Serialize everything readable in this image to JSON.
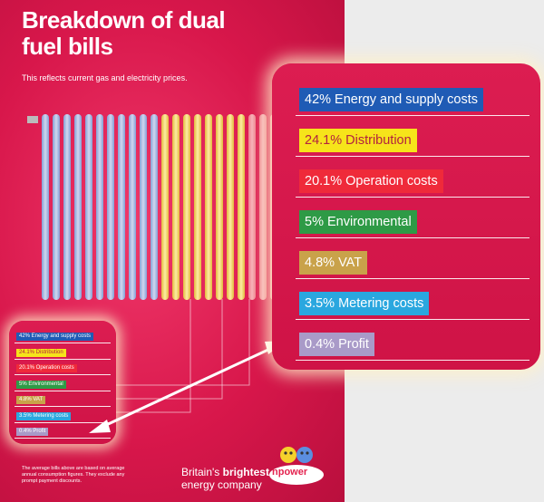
{
  "poster": {
    "title": "Breakdown of dual fuel bills",
    "subtitle": "This reflects current gas and electricity prices.",
    "footnote": "The average bills above are based on average annual consumption figures. They exclude any prompt payment discounts.",
    "brand_line1_pre": "Britain's ",
    "brand_line1_bold": "brightest",
    "brand_line2": "energy company",
    "logo_text": "npower"
  },
  "chart_data": {
    "type": "bar",
    "categories": [
      "Energy and supply costs",
      "Distribution",
      "Operation costs",
      "Environmental",
      "VAT",
      "Metering costs",
      "Profit"
    ],
    "values": [
      42,
      24.1,
      20.1,
      5,
      4.8,
      3.5,
      0.4
    ],
    "labels": [
      "42% Energy and supply costs",
      "24.1% Distribution",
      "20.1% Operation costs",
      "5% Environmental",
      "4.8% VAT",
      "3.5% Metering costs",
      "0.4% Profit"
    ],
    "colors": [
      "#1f5bb5",
      "#f6e41a",
      "#ef2a3a",
      "#2e9a46",
      "#c9a24a",
      "#2aa7df",
      "#a99ac8"
    ],
    "text_colors": [
      "#ffffff",
      "#b3213f",
      "#ffffff",
      "#ffffff",
      "#ffffff",
      "#ffffff",
      "#ffffff"
    ],
    "title": "Breakdown of dual fuel bills"
  }
}
